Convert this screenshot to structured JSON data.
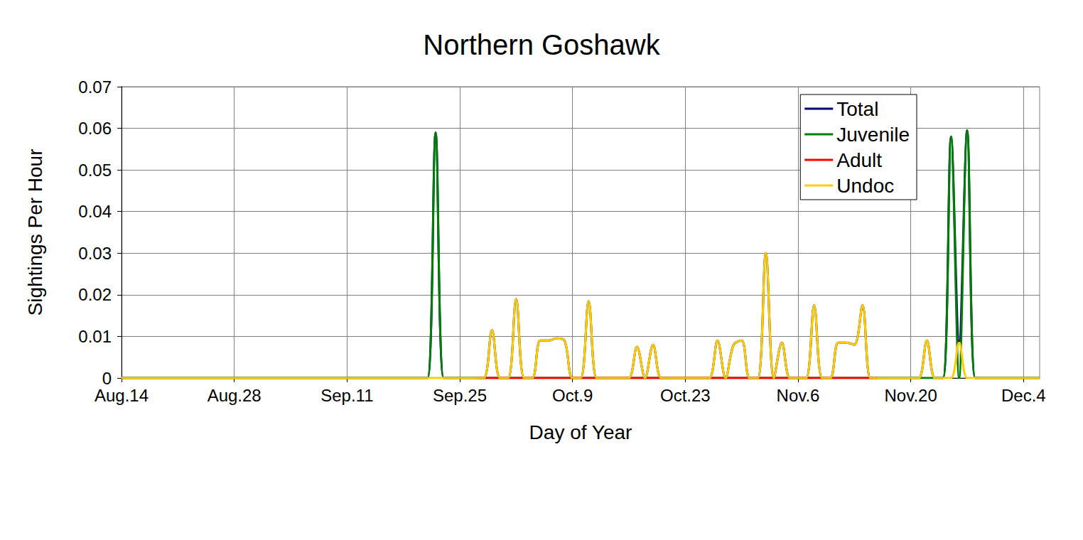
{
  "chart_data": {
    "type": "line",
    "title": "Northern Goshawk",
    "x_label": "Day of Year",
    "y_label": "Sightings Per Hour",
    "categories": [
      "Aug.14",
      null,
      null,
      null,
      null,
      null,
      null,
      null,
      null,
      null,
      null,
      null,
      null,
      null,
      "Aug.28",
      null,
      null,
      null,
      null,
      null,
      null,
      null,
      null,
      null,
      null,
      null,
      null,
      null,
      "Sep.11",
      null,
      null,
      null,
      null,
      null,
      null,
      null,
      null,
      null,
      null,
      null,
      null,
      null,
      "Sep.25",
      null,
      null,
      null,
      null,
      null,
      null,
      null,
      null,
      null,
      null,
      null,
      null,
      null,
      "Oct.9",
      null,
      null,
      null,
      null,
      null,
      null,
      null,
      null,
      null,
      null,
      null,
      null,
      null,
      "Oct.23",
      null,
      null,
      null,
      null,
      null,
      null,
      null,
      null,
      null,
      null,
      null,
      null,
      null,
      "Nov.6",
      null,
      null,
      null,
      null,
      null,
      null,
      null,
      null,
      null,
      null,
      null,
      null,
      null,
      "Nov.20",
      null,
      null,
      null,
      null,
      null,
      null,
      null,
      null,
      null,
      null,
      null,
      null,
      null,
      "Dec.4",
      null,
      null
    ],
    "series": [
      {
        "name": "Total",
        "color": "#000080",
        "values": [
          0,
          0,
          0,
          0,
          0,
          0,
          0,
          0,
          0,
          0,
          0,
          0,
          0,
          0,
          0,
          0,
          0,
          0,
          0,
          0,
          0,
          0,
          0,
          0,
          0,
          0,
          0,
          0,
          0,
          0,
          0,
          0,
          0,
          0,
          0,
          0,
          0,
          0,
          0,
          0.059,
          0,
          0,
          0,
          0,
          0,
          0,
          0.0115,
          0,
          0,
          0.019,
          0,
          0,
          0.009,
          0.009,
          0.0095,
          0.009,
          0,
          0,
          0.0185,
          0,
          0,
          0,
          0,
          0,
          0.0075,
          0,
          0.008,
          0,
          0,
          0,
          0,
          0,
          0,
          0,
          0.009,
          0,
          0.008,
          0.009,
          0,
          0,
          0.03,
          0,
          0.0085,
          0,
          0,
          0,
          0.0175,
          0,
          0,
          0.0085,
          0.0085,
          0.008,
          0.0175,
          0,
          0,
          0,
          0,
          0,
          0,
          0,
          0.009,
          0,
          0,
          0.058,
          0.0085,
          0.0595,
          0,
          0,
          0,
          0,
          0,
          0,
          0,
          0,
          0
        ]
      },
      {
        "name": "Juvenile",
        "color": "#008000",
        "values": [
          0,
          0,
          0,
          0,
          0,
          0,
          0,
          0,
          0,
          0,
          0,
          0,
          0,
          0,
          0,
          0,
          0,
          0,
          0,
          0,
          0,
          0,
          0,
          0,
          0,
          0,
          0,
          0,
          0,
          0,
          0,
          0,
          0,
          0,
          0,
          0,
          0,
          0,
          0,
          0.059,
          0,
          0,
          0,
          0,
          0,
          0,
          0,
          0,
          0,
          0,
          0,
          0,
          0,
          0,
          0,
          0,
          0,
          0,
          0,
          0,
          0,
          0,
          0,
          0,
          0,
          0,
          0,
          0,
          0,
          0,
          0,
          0,
          0,
          0,
          0,
          0,
          0,
          0,
          0,
          0,
          0,
          0,
          0,
          0,
          0,
          0,
          0,
          0,
          0,
          0,
          0,
          0,
          0,
          0,
          0,
          0,
          0,
          0,
          0,
          0,
          0,
          0,
          0,
          0.058,
          0,
          0.0595,
          0,
          0,
          0,
          0,
          0,
          0,
          0,
          0,
          0
        ]
      },
      {
        "name": "Adult",
        "color": "#ff0000",
        "values": [
          null,
          null,
          null,
          null,
          null,
          null,
          null,
          null,
          null,
          null,
          null,
          null,
          null,
          null,
          null,
          null,
          null,
          null,
          null,
          null,
          null,
          null,
          null,
          null,
          null,
          null,
          null,
          null,
          null,
          null,
          null,
          null,
          null,
          null,
          null,
          null,
          null,
          null,
          null,
          null,
          null,
          null,
          null,
          null,
          0,
          0,
          0,
          0,
          0,
          0,
          0,
          0,
          0,
          0,
          0,
          0,
          0,
          0,
          0,
          0,
          0,
          0,
          0,
          0,
          0,
          0,
          0,
          0,
          0,
          0,
          0,
          0,
          0,
          0,
          0,
          0,
          0,
          0,
          0,
          0,
          0,
          0,
          0,
          0,
          0,
          0,
          0,
          0,
          0,
          0,
          0,
          0,
          0,
          0,
          0,
          null,
          null,
          null,
          null,
          null,
          null,
          null,
          null,
          null,
          null,
          null,
          null,
          null,
          null,
          null,
          null,
          null,
          null,
          null,
          null
        ]
      },
      {
        "name": "Undoc",
        "color": "#ffcc00",
        "values": [
          0,
          0,
          0,
          0,
          0,
          0,
          0,
          0,
          0,
          0,
          0,
          0,
          0,
          0,
          0,
          0,
          0,
          0,
          0,
          0,
          0,
          0,
          0,
          0,
          0,
          0,
          0,
          0,
          0,
          0,
          0,
          0,
          0,
          0,
          0,
          0,
          0,
          0,
          0,
          0,
          0,
          0,
          0,
          0,
          0,
          0,
          0.0115,
          0,
          0,
          0.019,
          0,
          0,
          0.009,
          0.009,
          0.0095,
          0.009,
          0,
          0,
          0.0185,
          0,
          0,
          0,
          0,
          0,
          0.0075,
          0,
          0.008,
          0,
          0,
          0,
          0,
          0,
          0,
          0,
          0.009,
          0,
          0.008,
          0.009,
          0,
          0,
          0.03,
          0,
          0.0085,
          0,
          0,
          0,
          0.0175,
          0,
          0,
          0.0085,
          0.0085,
          0.008,
          0.0175,
          0,
          0,
          0,
          0,
          0,
          0,
          0,
          0.009,
          0,
          0,
          0,
          0.0085,
          0,
          0,
          0,
          0,
          0,
          0,
          0,
          0,
          0,
          0
        ]
      }
    ],
    "ylim": [
      0,
      0.07
    ],
    "yticks": [
      0,
      0.01,
      0.02,
      0.03,
      0.04,
      0.05,
      0.06,
      0.07
    ],
    "grid": true,
    "legend": "upper right"
  }
}
